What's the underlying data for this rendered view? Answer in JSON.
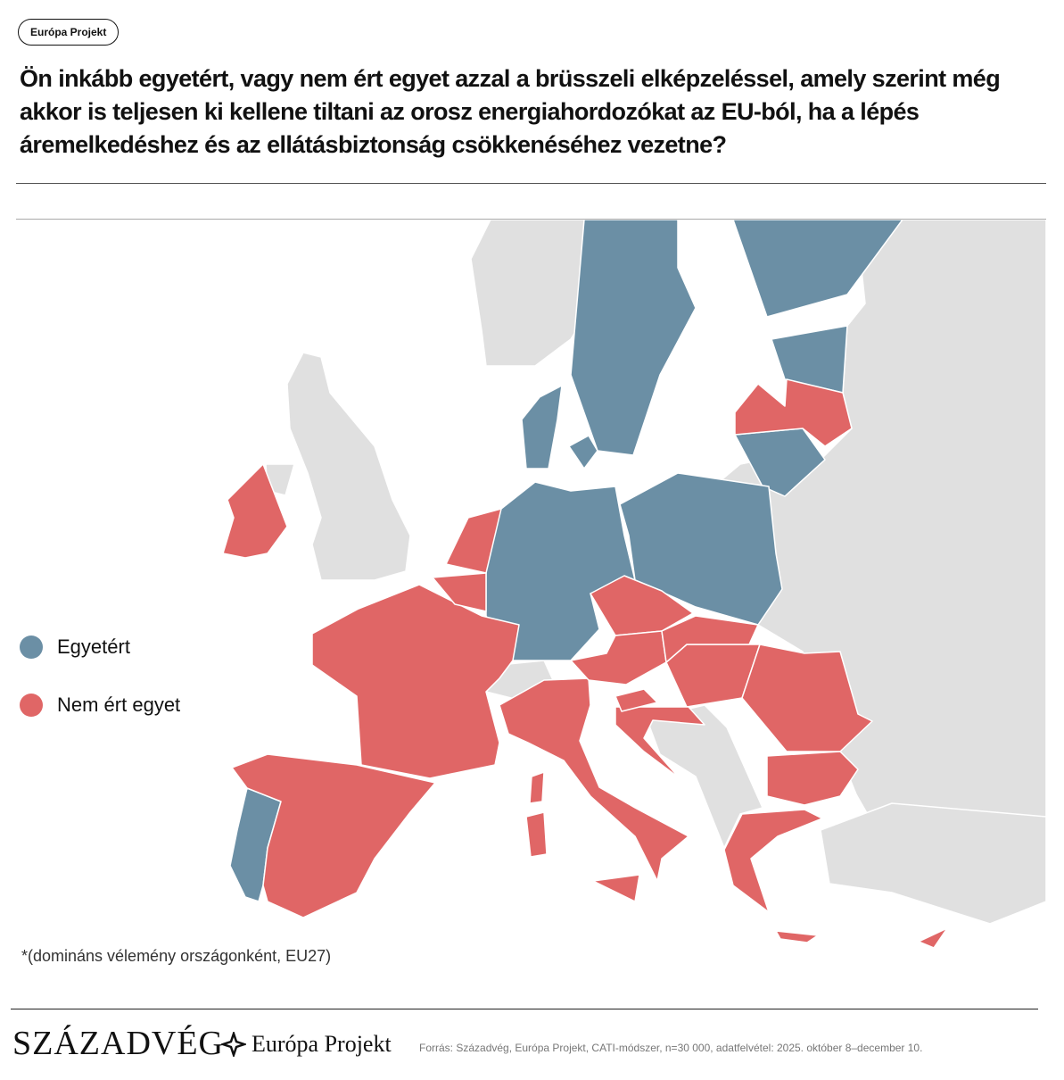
{
  "tag": "Európa Projekt",
  "title": "Ön inkább egyetért, vagy nem ért egyet azzal a brüsszeli elképzeléssel, amely szerint még akkor is teljesen ki kellene tiltani az orosz energiahordozókat az EU-ból, ha a lépés áremelkedéshez és az ellátásbiztonság csökkenéséhez vezetne?",
  "legend": [
    {
      "label": "Egyetért",
      "color": "#6b8fa5"
    },
    {
      "label": "Nem ért egyet",
      "color": "#e06666"
    }
  ],
  "note": "*(domináns vélemény országonként, EU27)",
  "footer": {
    "logo_main": "SZÁZADVÉG",
    "logo_project": "Európa Projekt",
    "source": "Forrás: Századvég, Európa Projekt, CATI-módszer, n=30 000, adatfelvétel: 2025. október 8–december 10."
  }
}
